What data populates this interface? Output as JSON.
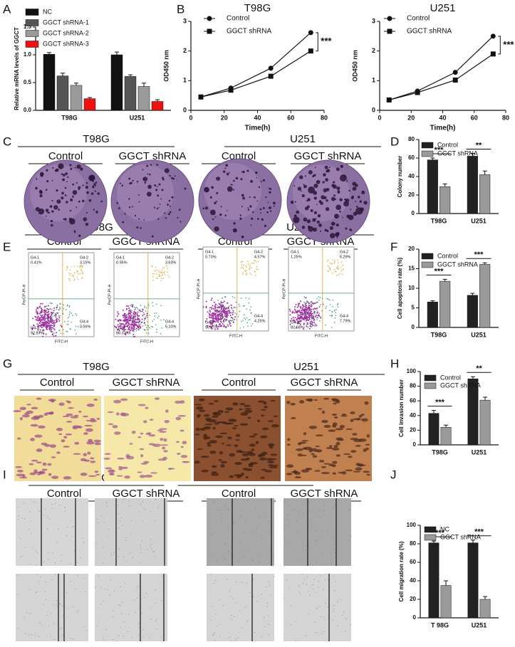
{
  "panel_labels": [
    "A",
    "B",
    "C",
    "D",
    "E",
    "F",
    "G",
    "H",
    "I",
    "J"
  ],
  "chart_data": [
    {
      "type": "bar",
      "y_label": "Relative mRNA  levels of GGCT",
      "categories": [
        "T98G",
        "U251"
      ],
      "series": [
        {
          "name": "NC",
          "color": "#111111",
          "values": [
            1.01,
            1.0
          ],
          "errors": [
            0.03,
            0.05
          ]
        },
        {
          "name": "GGCT shRNA-1",
          "color": "#555555",
          "values": [
            0.62,
            0.61
          ],
          "errors": [
            0.05,
            0.03
          ]
        },
        {
          "name": "GGCT shRNA-2",
          "color": "#9a9a9a",
          "values": [
            0.45,
            0.43
          ],
          "errors": [
            0.04,
            0.06
          ]
        },
        {
          "name": "GGCT shRNA-3",
          "color": "#ee1111",
          "values": [
            0.21,
            0.16
          ],
          "errors": [
            0.02,
            0.03
          ]
        }
      ],
      "ylim": [
        0,
        1.5
      ],
      "yticks": [
        {
          "value": 0,
          "label": "0.0"
        },
        0.5,
        {
          "value": 1,
          "label": "1.0"
        },
        1.5
      ]
    },
    {
      "type": "line",
      "title": "T98G",
      "x_label": "Time(h)",
      "y_label": "OD450 nm",
      "x": [
        6,
        24,
        48,
        72
      ],
      "series": [
        {
          "name": "Control",
          "color": "#111111",
          "marker": "circle",
          "values": [
            0.45,
            0.75,
            1.42,
            2.62
          ]
        },
        {
          "name": "GGCT shRNA",
          "color": "#111111",
          "marker": "square",
          "values": [
            0.45,
            0.68,
            1.15,
            2.0
          ]
        }
      ],
      "annotation": "***",
      "xlim": [
        0,
        80
      ],
      "xticks": [
        0,
        20,
        40,
        60,
        80
      ],
      "ylim": [
        0,
        3
      ],
      "yticks": [
        0,
        1,
        2,
        3
      ]
    },
    {
      "type": "line",
      "title": "U251",
      "x_label": "Time(h)",
      "y_label": "OD450 nm",
      "x": [
        6,
        24,
        48,
        72
      ],
      "series": [
        {
          "name": "Control",
          "color": "#111111",
          "marker": "circle",
          "values": [
            0.35,
            0.65,
            1.28,
            2.5
          ]
        },
        {
          "name": "GGCT shRNA",
          "color": "#111111",
          "marker": "square",
          "values": [
            0.35,
            0.6,
            1.02,
            1.9
          ]
        }
      ],
      "annotation": "***",
      "xlim": [
        0,
        80
      ],
      "xticks": [
        0,
        20,
        40,
        60,
        80
      ],
      "ylim": [
        0,
        3
      ],
      "yticks": [
        0,
        1,
        2,
        3
      ]
    },
    {
      "type": "bar",
      "y_label": "Colony number",
      "categories": [
        "T98G",
        "U251"
      ],
      "series": [
        {
          "name": "Control",
          "color": "#222222",
          "values": [
            58,
            62
          ],
          "errors": [
            2,
            3
          ]
        },
        {
          "name": "GGCT shRNA",
          "color": "#9a9a9a",
          "values": [
            29,
            42
          ],
          "errors": [
            3,
            4
          ]
        }
      ],
      "annotations": [
        "***",
        "**"
      ],
      "ylim": [
        0,
        80
      ],
      "yticks": [
        0,
        20,
        40,
        60,
        80
      ]
    },
    {
      "type": "bar",
      "y_label": "Cell apoptosis rate (%)",
      "categories": [
        "T98G",
        "U251"
      ],
      "series": [
        {
          "name": "Control",
          "color": "#222222",
          "values": [
            6.5,
            8.2
          ],
          "errors": [
            0.3,
            0.5
          ]
        },
        {
          "name": "GGCT shRNA",
          "color": "#9a9a9a",
          "values": [
            11.8,
            16.1
          ],
          "errors": [
            0.5,
            0.4
          ]
        }
      ],
      "annotations": [
        "***",
        "***"
      ],
      "ylim": [
        0,
        20
      ],
      "yticks": [
        0,
        5,
        10,
        15,
        20
      ]
    },
    {
      "type": "bar",
      "y_label": "Cell invasion number",
      "categories": [
        "T98G",
        "U251"
      ],
      "series": [
        {
          "name": "Control",
          "color": "#222222",
          "values": [
            43,
            90
          ],
          "errors": [
            4,
            3
          ]
        },
        {
          "name": "GGCT shRNA",
          "color": "#9a9a9a",
          "values": [
            24,
            61
          ],
          "errors": [
            3,
            4
          ]
        }
      ],
      "annotations": [
        "***",
        "**"
      ],
      "ylim": [
        0,
        100
      ],
      "yticks": [
        0,
        20,
        40,
        60,
        80,
        100
      ]
    },
    {
      "type": "bar",
      "y_label": "Cell migration rate (%)",
      "categories": [
        "T 98G",
        "U251"
      ],
      "series": [
        {
          "name": "NC",
          "color": "#222222",
          "values": [
            81,
            81
          ],
          "errors": [
            2,
            3
          ]
        },
        {
          "name": "GGCT shRNA",
          "color": "#9a9a9a",
          "values": [
            35,
            20
          ],
          "errors": [
            5,
            3
          ]
        }
      ],
      "annotations": [
        "***",
        "***"
      ],
      "ylim": [
        0,
        100
      ],
      "yticks": [
        0,
        20,
        40,
        60,
        80,
        100
      ]
    }
  ],
  "panel_c": {
    "groups": [
      {
        "title": "T98G",
        "conditions": [
          "Control",
          "GGCT shRNA"
        ]
      },
      {
        "title": "U251",
        "conditions": [
          "Control",
          "GGCT shRNA"
        ]
      }
    ]
  },
  "panel_e": {
    "groups": [
      {
        "title": "T98G",
        "conditions": [
          "Control",
          "GGCT shRNA"
        ]
      },
      {
        "title": "U251",
        "conditions": [
          "Control",
          "GGCT shRNA"
        ]
      }
    ],
    "x_label": "FITC-H",
    "y_label": "PerCP-PI-H",
    "plots": [
      {
        "gates": [
          "G4-1",
          "G4-2",
          "G4-3",
          "G4-4"
        ],
        "percents": [
          "0.41%",
          "3.15%",
          "92.87%",
          "3.56%"
        ]
      },
      {
        "gates": [
          "G4-1",
          "G4-2",
          "G4-3",
          "G4-4"
        ],
        "percents": [
          "0.95%",
          "3.63%",
          "88.32%",
          "5.10%"
        ]
      },
      {
        "gates": [
          "G4-1",
          "G4-2",
          "G4-3",
          "G4-4"
        ],
        "percents": [
          "0.73%",
          "4.57%",
          "90.47%",
          "4.25%"
        ]
      },
      {
        "gates": [
          "G4-1",
          "G4-2",
          "G4-3",
          "G4-4"
        ],
        "percents": [
          "1.25%",
          "6.29%",
          "82.68%",
          "7.79%"
        ]
      }
    ]
  },
  "panel_g": {
    "groups": [
      {
        "title": "T98G",
        "conditions": [
          "Control",
          "GGCT shRNA"
        ]
      },
      {
        "title": "U251",
        "conditions": [
          "Control",
          "GGCT shRNA"
        ]
      }
    ]
  },
  "panel_i": {
    "groups": [
      {
        "title": "T98G",
        "conditions": [
          "Control",
          "GGCT shRNA"
        ]
      },
      {
        "title": "U251",
        "conditions": [
          "Control",
          "GGCT shRNA"
        ]
      }
    ]
  }
}
